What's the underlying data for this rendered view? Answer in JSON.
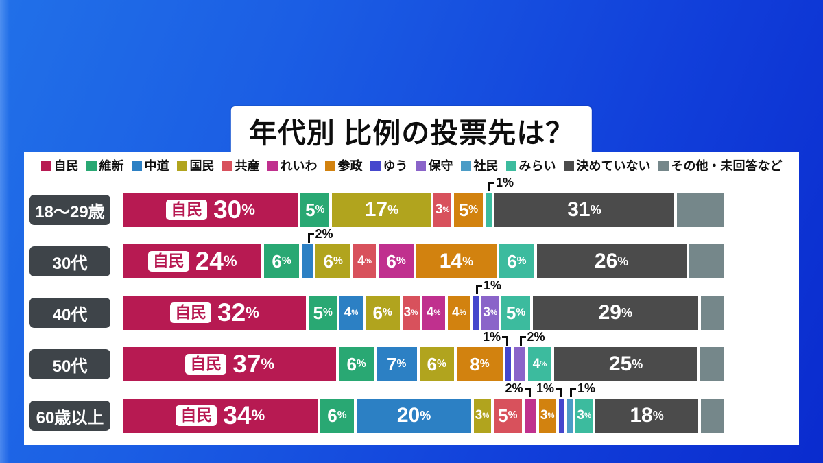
{
  "title": "年代別 比例の投票先は？",
  "unit": "%",
  "jimin_badge_label": "自民",
  "label_box_color": "#3e4449",
  "legend": {
    "position": "top",
    "items": [
      {
        "key": "jimin",
        "label": "自民",
        "color": "#b71a52"
      },
      {
        "key": "ishin",
        "label": "維新",
        "color": "#29a873"
      },
      {
        "key": "chudo",
        "label": "中道",
        "color": "#2c80c4"
      },
      {
        "key": "kokumin",
        "label": "国民",
        "color": "#b1a41e"
      },
      {
        "key": "kyosan",
        "label": "共産",
        "color": "#d8515c"
      },
      {
        "key": "reiwa",
        "label": "れいわ",
        "color": "#c0308e"
      },
      {
        "key": "sansei",
        "label": "参政",
        "color": "#d2820f"
      },
      {
        "key": "yuu",
        "label": "ゆう",
        "color": "#4547cd"
      },
      {
        "key": "hoshu",
        "label": "保守",
        "color": "#8a64c9"
      },
      {
        "key": "shamin",
        "label": "社民",
        "color": "#4c9cc6"
      },
      {
        "key": "mirai",
        "label": "みらい",
        "color": "#3cbb9e"
      },
      {
        "key": "undecided",
        "label": "決めていない",
        "color": "#4b4b4b"
      },
      {
        "key": "other",
        "label": "その他・未回答など",
        "color": "#75878a"
      }
    ]
  },
  "rows": [
    {
      "label": "18〜29歳",
      "segments": [
        {
          "key": "jimin",
          "value": 30,
          "badge": true
        },
        {
          "key": "ishin",
          "value": 5
        },
        {
          "key": "kokumin",
          "value": 17
        },
        {
          "key": "kyosan",
          "value": 3
        },
        {
          "key": "sansei",
          "value": 5
        },
        {
          "key": "mirai",
          "value": 1,
          "callout": "right"
        },
        {
          "key": "undecided",
          "value": 31
        },
        {
          "key": "other",
          "value": 8
        }
      ]
    },
    {
      "label": "30代",
      "segments": [
        {
          "key": "jimin",
          "value": 24,
          "badge": true
        },
        {
          "key": "ishin",
          "value": 6
        },
        {
          "key": "chudo",
          "value": 2,
          "callout": "right"
        },
        {
          "key": "kokumin",
          "value": 6
        },
        {
          "key": "kyosan",
          "value": 4
        },
        {
          "key": "reiwa",
          "value": 6
        },
        {
          "key": "sansei",
          "value": 14
        },
        {
          "key": "mirai",
          "value": 6
        },
        {
          "key": "undecided",
          "value": 26
        },
        {
          "key": "other",
          "value": 6
        }
      ]
    },
    {
      "label": "40代",
      "segments": [
        {
          "key": "jimin",
          "value": 32,
          "badge": true
        },
        {
          "key": "ishin",
          "value": 5
        },
        {
          "key": "chudo",
          "value": 4
        },
        {
          "key": "kokumin",
          "value": 6
        },
        {
          "key": "kyosan",
          "value": 3
        },
        {
          "key": "reiwa",
          "value": 4
        },
        {
          "key": "sansei",
          "value": 4
        },
        {
          "key": "yuu",
          "value": 1,
          "callout": "right"
        },
        {
          "key": "hoshu",
          "value": 3
        },
        {
          "key": "mirai",
          "value": 5
        },
        {
          "key": "undecided",
          "value": 29
        },
        {
          "key": "other",
          "value": 4
        }
      ]
    },
    {
      "label": "50代",
      "segments": [
        {
          "key": "jimin",
          "value": 37,
          "badge": true
        },
        {
          "key": "ishin",
          "value": 6
        },
        {
          "key": "chudo",
          "value": 7
        },
        {
          "key": "kokumin",
          "value": 6
        },
        {
          "key": "sansei",
          "value": 8
        },
        {
          "key": "yuu",
          "value": 1,
          "callout": "left"
        },
        {
          "key": "hoshu",
          "value": 2,
          "callout": "right"
        },
        {
          "key": "mirai",
          "value": 4
        },
        {
          "key": "undecided",
          "value": 25
        },
        {
          "key": "other",
          "value": 4
        }
      ]
    },
    {
      "label": "60歳以上",
      "segments": [
        {
          "key": "jimin",
          "value": 34,
          "badge": true
        },
        {
          "key": "ishin",
          "value": 6
        },
        {
          "key": "chudo",
          "value": 20
        },
        {
          "key": "kokumin",
          "value": 3
        },
        {
          "key": "kyosan",
          "value": 5
        },
        {
          "key": "reiwa",
          "value": 2,
          "callout": "left"
        },
        {
          "key": "sansei",
          "value": 3
        },
        {
          "key": "yuu",
          "value": 1,
          "callout": "left"
        },
        {
          "key": "shamin",
          "value": 1,
          "callout": "right"
        },
        {
          "key": "mirai",
          "value": 3
        },
        {
          "key": "undecided",
          "value": 18
        },
        {
          "key": "other",
          "value": 4
        }
      ]
    }
  ],
  "chart_data": {
    "type": "bar",
    "stacked": true,
    "orientation": "horizontal",
    "title": "年代別 比例の投票先は？",
    "unit": "percent",
    "categories": [
      "18〜29歳",
      "30代",
      "40代",
      "50代",
      "60歳以上"
    ],
    "series": [
      {
        "name": "自民",
        "values": [
          30,
          24,
          32,
          37,
          34
        ]
      },
      {
        "name": "維新",
        "values": [
          5,
          6,
          5,
          6,
          6
        ]
      },
      {
        "name": "中道",
        "values": [
          0,
          2,
          4,
          7,
          20
        ]
      },
      {
        "name": "国民",
        "values": [
          17,
          6,
          6,
          6,
          3
        ]
      },
      {
        "name": "共産",
        "values": [
          3,
          4,
          3,
          0,
          5
        ]
      },
      {
        "name": "れいわ",
        "values": [
          0,
          6,
          4,
          0,
          2
        ]
      },
      {
        "name": "参政",
        "values": [
          5,
          14,
          4,
          8,
          3
        ]
      },
      {
        "name": "ゆう",
        "values": [
          0,
          0,
          1,
          1,
          1
        ]
      },
      {
        "name": "保守",
        "values": [
          0,
          0,
          3,
          2,
          0
        ]
      },
      {
        "name": "社民",
        "values": [
          0,
          0,
          0,
          0,
          1
        ]
      },
      {
        "name": "みらい",
        "values": [
          1,
          6,
          5,
          4,
          3
        ]
      },
      {
        "name": "決めていない",
        "values": [
          31,
          26,
          29,
          25,
          18
        ]
      },
      {
        "name": "その他・未回答など",
        "values": [
          8,
          6,
          4,
          4,
          4
        ]
      }
    ],
    "xlim": [
      0,
      100
    ],
    "legend_position": "top",
    "grid": false
  }
}
